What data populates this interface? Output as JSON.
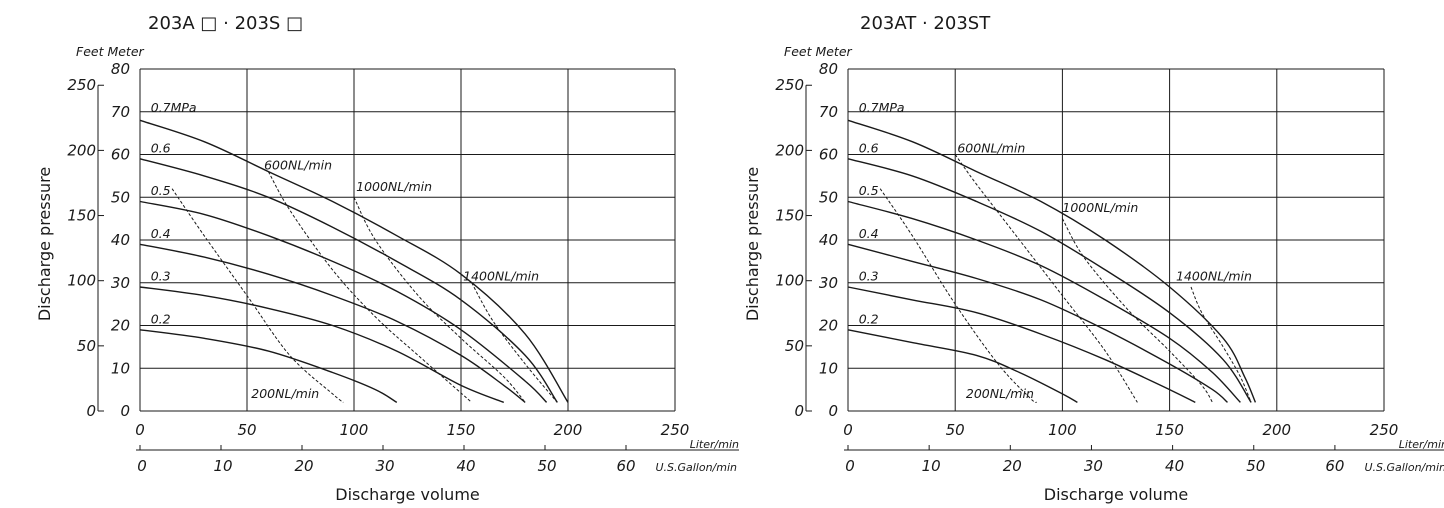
{
  "chart_data": [
    {
      "type": "line",
      "title": "203A □ · 203S □",
      "unit_label": "Feet Meter",
      "ylabel": "Discharge pressure",
      "xlabel": "Discharge volume",
      "xlim": [
        0,
        250
      ],
      "ylim": [
        0,
        80
      ],
      "x_ticks": [
        0,
        50,
        100,
        150,
        200,
        250
      ],
      "x_unit": "Liter/min",
      "y_ticks_m": [
        0,
        10,
        20,
        30,
        40,
        50,
        60,
        70,
        80
      ],
      "y_ticks_ft": [
        0,
        50,
        100,
        150,
        200,
        250
      ],
      "gal_ticks": [
        0,
        10,
        20,
        30,
        40,
        50,
        60
      ],
      "gal_unit": "U.S.Gallon/min",
      "grid": true,
      "series": [
        {
          "name": "0.7MPa",
          "x": [
            0,
            30,
            60,
            90,
            120,
            150,
            180,
            200
          ],
          "y": [
            68,
            63,
            56,
            49,
            41,
            32,
            18,
            2
          ]
        },
        {
          "name": "0.6",
          "x": [
            0,
            30,
            60,
            90,
            120,
            150,
            180,
            195
          ],
          "y": [
            59,
            55,
            50,
            43,
            35,
            26,
            13,
            2
          ]
        },
        {
          "name": "0.5",
          "x": [
            0,
            30,
            60,
            90,
            120,
            150,
            180,
            190
          ],
          "y": [
            49,
            46,
            41,
            35,
            28,
            19,
            7,
            2
          ]
        },
        {
          "name": "0.4",
          "x": [
            0,
            30,
            60,
            90,
            120,
            150,
            170,
            180
          ],
          "y": [
            39,
            36,
            32,
            27,
            21,
            13,
            6,
            2
          ]
        },
        {
          "name": "0.3",
          "x": [
            0,
            30,
            60,
            90,
            120,
            150,
            170
          ],
          "y": [
            29,
            27,
            24,
            20,
            14,
            6,
            2
          ]
        },
        {
          "name": "0.2",
          "x": [
            0,
            30,
            60,
            90,
            110,
            120
          ],
          "y": [
            19,
            17,
            14,
            9,
            5,
            2
          ]
        }
      ],
      "air_series": [
        {
          "name": "200NL/min",
          "x": [
            15,
            30,
            50,
            70,
            90,
            95
          ],
          "y": [
            52,
            41,
            27,
            13,
            4,
            2
          ]
        },
        {
          "name": "600NL/min",
          "x": [
            60,
            70,
            90,
            110,
            130,
            155
          ],
          "y": [
            56,
            47,
            33,
            22,
            13,
            2
          ]
        },
        {
          "name": "1000NL/min",
          "x": [
            100,
            110,
            130,
            150,
            170,
            180
          ],
          "y": [
            50,
            40,
            27,
            17,
            8,
            2
          ]
        },
        {
          "name": "1400NL/min",
          "x": [
            155,
            165,
            180,
            195
          ],
          "y": [
            30,
            21,
            11,
            2
          ]
        }
      ],
      "labels_at": {
        "0.7MPa": [
          5,
          70
        ],
        "0.6": [
          5,
          60.5
        ],
        "0.5": [
          5,
          50.5
        ],
        "0.4": [
          5,
          40.5
        ],
        "0.3": [
          5,
          30.5
        ],
        "0.2": [
          5,
          20.5
        ],
        "200NL/min": [
          52,
          3
        ],
        "600NL/min": [
          58,
          56.5
        ],
        "1000NL/min": [
          101,
          51.5
        ],
        "1400NL/min": [
          151,
          30.5
        ]
      }
    },
    {
      "type": "line",
      "title": "203AT · 203ST",
      "unit_label": "Feet Meter",
      "ylabel": "Discharge pressure",
      "xlabel": "Discharge volume",
      "xlim": [
        0,
        250
      ],
      "ylim": [
        0,
        80
      ],
      "x_ticks": [
        0,
        50,
        100,
        150,
        200,
        250
      ],
      "x_unit": "Liter/min",
      "y_ticks_m": [
        0,
        10,
        20,
        30,
        40,
        50,
        60,
        70,
        80
      ],
      "y_ticks_ft": [
        0,
        50,
        100,
        150,
        200,
        250
      ],
      "gal_ticks": [
        0,
        10,
        20,
        30,
        40,
        50,
        60
      ],
      "gal_unit": "U.S.Gallon/min",
      "grid": true,
      "series": [
        {
          "name": "0.7MPa",
          "x": [
            0,
            30,
            60,
            90,
            120,
            150,
            175,
            185,
            190
          ],
          "y": [
            68,
            63,
            56,
            49,
            40,
            29,
            17,
            8,
            2
          ]
        },
        {
          "name": "0.6",
          "x": [
            0,
            30,
            60,
            90,
            120,
            150,
            175,
            188
          ],
          "y": [
            59,
            55,
            49,
            42,
            33,
            23,
            12,
            2
          ]
        },
        {
          "name": "0.5",
          "x": [
            0,
            30,
            60,
            90,
            120,
            150,
            170,
            183
          ],
          "y": [
            49,
            45,
            40,
            34,
            26,
            17,
            9,
            2
          ]
        },
        {
          "name": "0.4",
          "x": [
            0,
            30,
            60,
            90,
            120,
            150,
            170,
            177
          ],
          "y": [
            39,
            35,
            31,
            26,
            19,
            11,
            5,
            2
          ]
        },
        {
          "name": "0.3",
          "x": [
            0,
            30,
            60,
            90,
            120,
            150,
            162
          ],
          "y": [
            29,
            26,
            23,
            18,
            12,
            5,
            2
          ]
        },
        {
          "name": "0.2",
          "x": [
            0,
            30,
            60,
            80,
            100,
            107
          ],
          "y": [
            19,
            16,
            13,
            9,
            4,
            2
          ]
        }
      ],
      "air_series": [
        {
          "name": "200NL/min",
          "x": [
            15,
            30,
            50,
            70,
            85,
            88
          ],
          "y": [
            52,
            41,
            25,
            11,
            3,
            2
          ]
        },
        {
          "name": "600NL/min",
          "x": [
            50,
            60,
            80,
            100,
            120,
            135
          ],
          "y": [
            60,
            53,
            40,
            27,
            14,
            2
          ]
        },
        {
          "name": "1000NL/min",
          "x": [
            100,
            110,
            130,
            150,
            165,
            170
          ],
          "y": [
            45,
            36,
            24,
            14,
            6,
            2
          ]
        },
        {
          "name": "1400NL/min",
          "x": [
            160,
            165,
            175,
            183,
            188
          ],
          "y": [
            29,
            23,
            15,
            8,
            2
          ]
        }
      ],
      "labels_at": {
        "0.7MPa": [
          5,
          70
        ],
        "0.6": [
          5,
          60.5
        ],
        "0.5": [
          5,
          50.5
        ],
        "0.4": [
          5,
          40.5
        ],
        "0.3": [
          5,
          30.5
        ],
        "0.2": [
          5,
          20.5
        ],
        "200NL/min": [
          55,
          3
        ],
        "600NL/min": [
          51,
          60.5
        ],
        "1000NL/min": [
          100,
          46.5
        ],
        "1400NL/min": [
          153,
          30.5
        ]
      }
    }
  ]
}
